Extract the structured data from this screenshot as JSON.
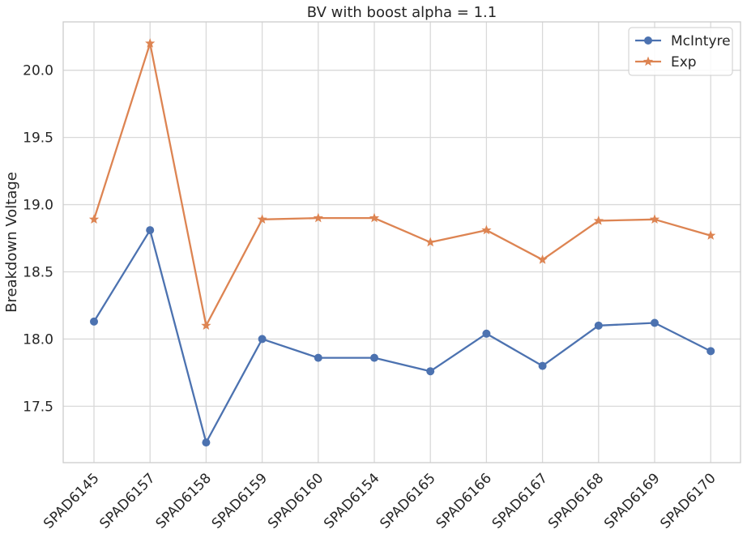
{
  "chart_data": {
    "type": "line",
    "title": "BV with boost alpha = 1.1",
    "xlabel": "",
    "ylabel": "Breakdown Voltage",
    "categories": [
      "SPAD6145",
      "SPAD6157",
      "SPAD6158",
      "SPAD6159",
      "SPAD6160",
      "SPAD6154",
      "SPAD6165",
      "SPAD6166",
      "SPAD6167",
      "SPAD6168",
      "SPAD6169",
      "SPAD6170"
    ],
    "ylim": [
      17.08,
      20.36
    ],
    "yticks": [
      17.5,
      18.0,
      18.5,
      19.0,
      19.5,
      20.0
    ],
    "ytick_labels": [
      "17.5",
      "18.0",
      "18.5",
      "19.0",
      "19.5",
      "20.0"
    ],
    "grid": true,
    "legend_position": "top-right",
    "series": [
      {
        "name": "McIntyre",
        "color": "#4c72b0",
        "marker": "circle",
        "values": [
          18.13,
          18.81,
          17.23,
          18.0,
          17.86,
          17.86,
          17.76,
          18.04,
          17.8,
          18.1,
          18.12,
          17.91
        ]
      },
      {
        "name": "Exp",
        "color": "#dd8452",
        "marker": "star",
        "values": [
          18.89,
          20.2,
          18.1,
          18.89,
          18.9,
          18.9,
          18.72,
          18.81,
          18.59,
          18.88,
          18.89,
          18.77
        ]
      }
    ]
  }
}
